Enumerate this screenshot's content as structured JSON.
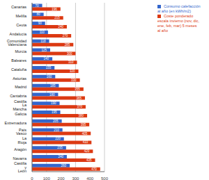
{
  "chart_data": {
    "type": "bar",
    "orientation": "horizontal",
    "grid": true,
    "legend": "upper right",
    "data_labels": true,
    "categories": [
      "Canarias",
      "Melilla",
      "Ceuta",
      "Andalucía",
      "Comunidad Valenciana",
      "Murcia",
      "Baleares",
      "Cataluña",
      "Asturias",
      "Madrid",
      "Cantabria",
      "Castilla La Mancha",
      "Galicia",
      "Extremadura",
      "País Vasco",
      "La Rioja",
      "Aragón",
      "Navarra",
      "Castilla y León"
    ],
    "series": [
      {
        "name": "Consumo calefacción al año (en kWh/m2)",
        "color": "#3366cc",
        "values": [
          70,
          80,
          90,
          110,
          118,
          125,
          140,
          155,
          160,
          185,
          180,
          190,
          195,
          205,
          210,
          220,
          235,
          240,
          260
        ]
      },
      {
        "name": "Coste ponderado escala invierno (nov, dic, ene, feb, mar) 5 meses al año",
        "color": "#dc3912",
        "values": [
          196,
          215,
          240,
          270,
          285,
          300,
          310,
          320,
          330,
          355,
          365,
          370,
          380,
          395,
          405,
          410,
          420,
          435,
          470
        ]
      }
    ],
    "xlim": [
      0,
      500
    ],
    "xticks": [
      0,
      100,
      200,
      300,
      400,
      500
    ]
  }
}
